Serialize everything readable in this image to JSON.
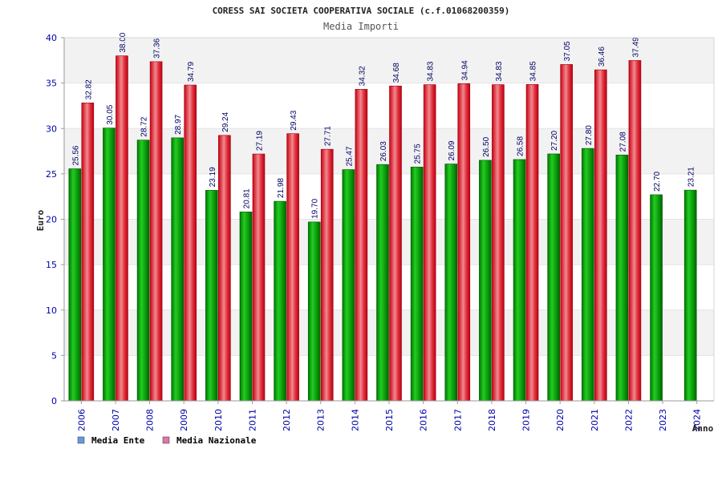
{
  "chart_data": {
    "type": "bar",
    "title": "CORESS SAI SOCIETA COOPERATIVA SOCIALE (c.f.01068200359)",
    "subtitle": "Media Importi",
    "xlabel": "Anno",
    "ylabel": "Euro",
    "ylim": [
      0,
      40
    ],
    "yticks": [
      "0",
      "5",
      "10",
      "15",
      "20",
      "25",
      "30",
      "35",
      "40"
    ],
    "categories": [
      "2006",
      "2007",
      "2008",
      "2009",
      "2010",
      "2011",
      "2012",
      "2013",
      "2014",
      "2015",
      "2016",
      "2017",
      "2018",
      "2019",
      "2020",
      "2021",
      "2022",
      "2023",
      "2024"
    ],
    "series": [
      {
        "name": "Media Ente",
        "color": "#00aa00",
        "legend_color": "#6699dd",
        "values": [
          25.56,
          30.05,
          28.72,
          28.97,
          23.19,
          20.81,
          21.98,
          19.7,
          25.47,
          26.03,
          25.75,
          26.09,
          26.5,
          26.58,
          27.2,
          27.8,
          27.08,
          22.7,
          23.21
        ],
        "labels": [
          "25.56",
          "30.05",
          "28.72",
          "28.97",
          "23.19",
          "20.81",
          "21.98",
          "19.70",
          "25.47",
          "26.03",
          "25.75",
          "26.09",
          "26.50",
          "26.58",
          "27.20",
          "27.80",
          "27.08",
          "22.70",
          "23.21"
        ]
      },
      {
        "name": "Media Nazionale",
        "color": "#ee2233",
        "legend_color": "#dd77aa",
        "values": [
          32.82,
          38.0,
          37.36,
          34.79,
          29.24,
          27.19,
          29.43,
          27.71,
          34.32,
          34.68,
          34.83,
          34.94,
          34.83,
          34.85,
          37.05,
          36.46,
          37.49,
          null,
          null
        ],
        "labels": [
          "32.82",
          "38.00",
          "37.36",
          "34.79",
          "29.24",
          "27.19",
          "29.43",
          "27.71",
          "34.32",
          "34.68",
          "34.83",
          "34.94",
          "34.83",
          "34.85",
          "37.05",
          "36.46",
          "37.49",
          null,
          null
        ]
      }
    ],
    "grid": true,
    "legend": "bottom-left"
  }
}
